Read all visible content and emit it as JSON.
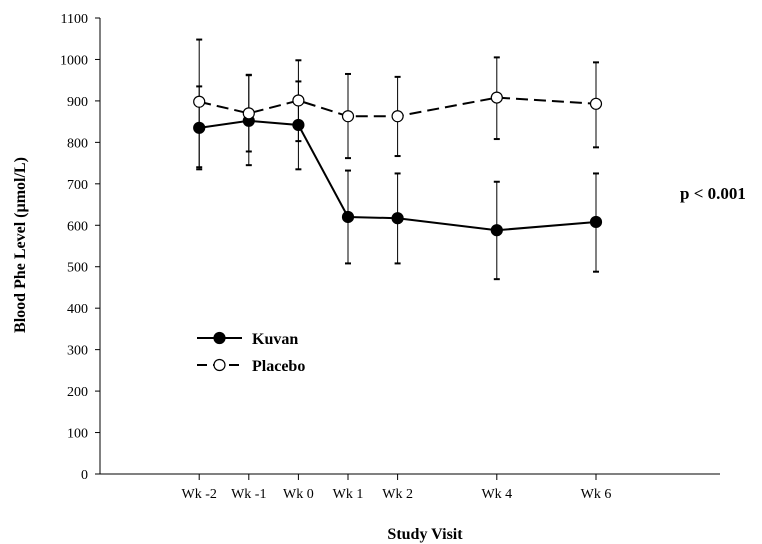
{
  "chart_data": {
    "type": "line",
    "xlabel": "Study Visit",
    "ylabel": "Blood Phe Level (µmol/L)",
    "ylim": [
      0,
      1100
    ],
    "yticks": [
      0,
      100,
      200,
      300,
      400,
      500,
      600,
      700,
      800,
      900,
      1000,
      1100
    ],
    "categories": [
      "Wk -2",
      "Wk -1",
      "Wk 0",
      "Wk 1",
      "Wk 2",
      "Wk 4",
      "Wk 6"
    ],
    "x_weeks": [
      -2,
      -1,
      0,
      1,
      2,
      4,
      6
    ],
    "grid": false,
    "legend_position": "center-left",
    "annotation": "p < 0.001",
    "series": [
      {
        "name": "Kuvan",
        "marker": "filled-circle",
        "line_style": "solid",
        "color": "#000000",
        "values": [
          835,
          852,
          842,
          620,
          617,
          588,
          608
        ],
        "error_low": [
          735,
          745,
          735,
          508,
          508,
          470,
          488
        ],
        "error_high": [
          935,
          962,
          947,
          732,
          725,
          705,
          725
        ]
      },
      {
        "name": "Placebo",
        "marker": "open-circle",
        "line_style": "dashed",
        "color": "#000000",
        "values": [
          898,
          870,
          901,
          863,
          863,
          908,
          893
        ],
        "error_low": [
          740,
          778,
          803,
          762,
          767,
          808,
          788
        ],
        "error_high": [
          1048,
          963,
          998,
          965,
          958,
          1005,
          993
        ]
      }
    ]
  }
}
